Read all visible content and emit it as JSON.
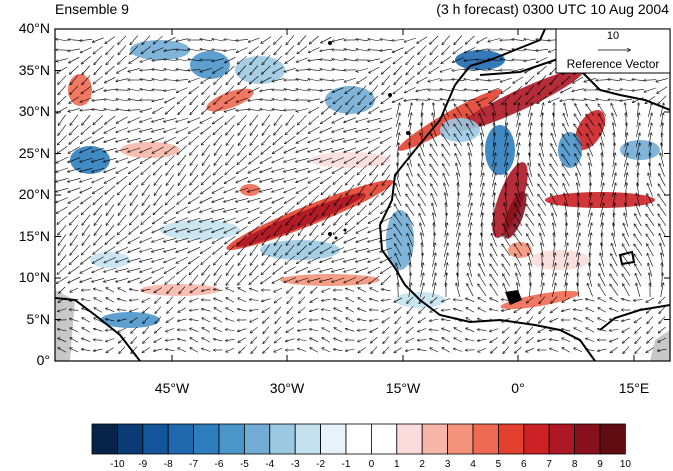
{
  "header": {
    "title_left": "Ensemble 9",
    "title_right": "(3 h forecast) 0300 UTC 10 Aug 2004"
  },
  "map": {
    "y_labels": [
      "40°N",
      "35°N",
      "30°N",
      "25°N",
      "20°N",
      "15°N",
      "10°N",
      "5°N",
      "0°"
    ],
    "x_labels": [
      "45°W",
      "30°W",
      "15°W",
      "0°",
      "15°E"
    ],
    "lat_range": [
      0,
      40
    ],
    "lon_range": [
      -60,
      20
    ]
  },
  "reference_vector": {
    "value": "10",
    "label": "Reference Vector"
  },
  "colorbar": {
    "labels": [
      "-10",
      "-9",
      "-8",
      "-7",
      "-6",
      "-5",
      "-4",
      "-3",
      "-2",
      "-1",
      "0",
      "1",
      "2",
      "3",
      "4",
      "5",
      "6",
      "7",
      "8",
      "9",
      "10"
    ],
    "colors": [
      "#08234a",
      "#0b3b74",
      "#13559a",
      "#1f6aaf",
      "#2e7dbc",
      "#4b95c9",
      "#72acd4",
      "#9cc9e2",
      "#c4e1ee",
      "#e6f3fa",
      "#ffffff",
      "#ffffff",
      "#fbdbdb",
      "#f6b7a9",
      "#f4937a",
      "#ef6a52",
      "#e3402f",
      "#cc2125",
      "#ad1623",
      "#87101c",
      "#600c12"
    ]
  }
}
